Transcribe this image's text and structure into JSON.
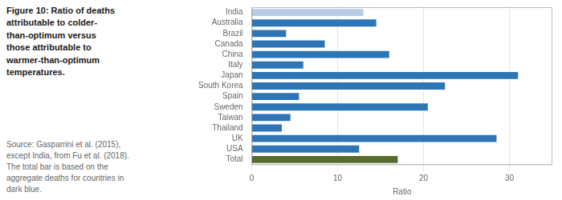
{
  "chart_data": {
    "type": "bar",
    "orientation": "horizontal",
    "title": [
      "Figure 10: Ratio of deaths",
      "attributable to colder-",
      "than-optimum versus",
      "those attributable to",
      "warmer-than-optimum",
      "temperatures."
    ],
    "annotations": [
      "Source: Gasparrini et al. (2015),",
      "except India, from Fu et al. (2018).",
      "The total bar is based on the",
      "aggregate deaths for countries in",
      "dark blue."
    ],
    "categories": [
      "India",
      "Australia",
      "Brazil",
      "Canada",
      "China",
      "Italy",
      "Japan",
      "South Korea",
      "Spain",
      "Sweden",
      "Taiwan",
      "Thailand",
      "UK",
      "USA",
      "Total"
    ],
    "values": [
      13.0,
      14.5,
      4.0,
      8.5,
      16.0,
      6.0,
      31.0,
      22.5,
      5.5,
      20.5,
      4.5,
      3.5,
      28.5,
      12.5,
      17.0
    ],
    "colors": [
      "#b8cce4",
      "#2e75b6",
      "#2e75b6",
      "#2e75b6",
      "#2e75b6",
      "#2e75b6",
      "#2e75b6",
      "#2e75b6",
      "#2e75b6",
      "#2e75b6",
      "#2e75b6",
      "#2e75b6",
      "#2e75b6",
      "#2e75b6",
      "#556b2f"
    ],
    "xlabel": "Ratio",
    "xlim": [
      0,
      35
    ],
    "xticks": [
      0,
      10,
      20,
      30
    ],
    "grid": true
  }
}
